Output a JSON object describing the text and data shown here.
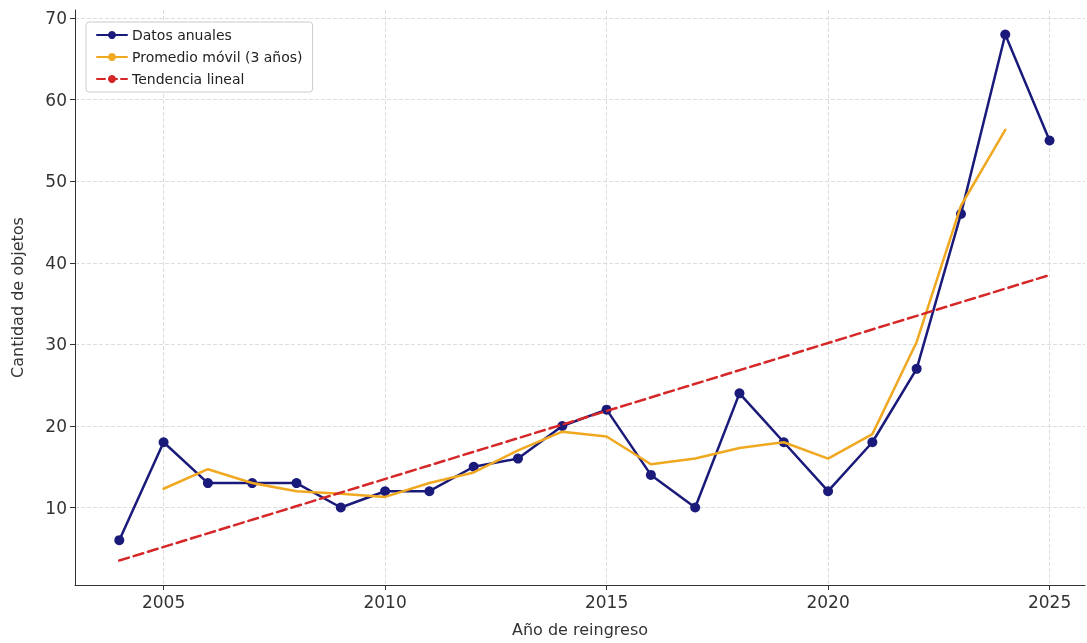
{
  "chart_data": {
    "type": "line",
    "xlabel": "Año de reingreso",
    "ylabel": "Cantidad de objetos",
    "xlim": [
      2003,
      2025.8
    ],
    "xticks": [
      2005,
      2010,
      2015,
      2020,
      2025
    ],
    "ylim": [
      0.5,
      71
    ],
    "yticks": [
      10,
      20,
      30,
      40,
      50,
      60,
      70
    ],
    "grid": true,
    "legend": "top left",
    "series": [
      {
        "name": "Datos anuales",
        "color": "#1a1a7a",
        "marker": "circle",
        "line_style": "solid",
        "x": [
          2004,
          2005,
          2006,
          2007,
          2008,
          2009,
          2010,
          2011,
          2012,
          2013,
          2014,
          2015,
          2016,
          2017,
          2018,
          2019,
          2020,
          2021,
          2022,
          2023,
          2024,
          2025
        ],
        "values": [
          6,
          18,
          13,
          13,
          13,
          10,
          12,
          12,
          15,
          16,
          20,
          22,
          14,
          10,
          24,
          18,
          12,
          18,
          27,
          46,
          68,
          55
        ]
      },
      {
        "name": "Promedio móvil (3 años)",
        "color": "#f0a820",
        "marker": "none",
        "line_style": "solid",
        "x": [
          2005,
          2006,
          2007,
          2008,
          2009,
          2010,
          2011,
          2012,
          2013,
          2014,
          2015,
          2016,
          2017,
          2018,
          2019,
          2020,
          2021,
          2022,
          2023,
          2024
        ],
        "values": [
          12.3,
          14.7,
          13,
          12,
          11.7,
          11.3,
          13,
          14.3,
          17,
          19.3,
          18.7,
          15.3,
          16,
          17.3,
          18,
          16,
          19,
          30.3,
          47,
          56.3
        ]
      },
      {
        "name": "Tendencia lineal",
        "color": "#d62728",
        "marker": "none",
        "line_style": "dashed",
        "x": [
          2004,
          2025
        ],
        "values": [
          3.5,
          38.5
        ]
      }
    ]
  }
}
